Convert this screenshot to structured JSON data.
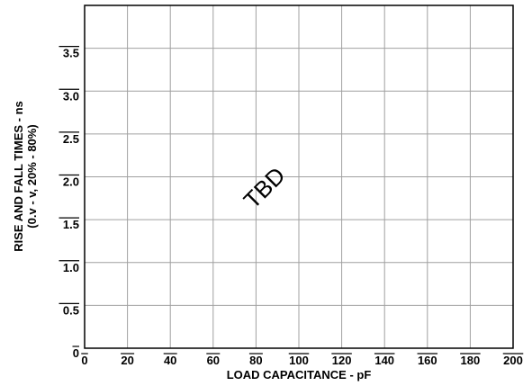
{
  "chart_data": {
    "type": "line",
    "title": "",
    "xlabel": "LOAD CAPACITANCE - pF",
    "ylabel": "RISE AND FALL TIMES - ns",
    "ylabel_sub": "(0.v - v, 20% - 80%)",
    "xlim": [
      0,
      200
    ],
    "ylim": [
      0,
      4.0
    ],
    "x_ticks": [
      0,
      20,
      40,
      60,
      80,
      100,
      120,
      140,
      160,
      180,
      200
    ],
    "x_tick_labels": [
      "0",
      "20",
      "40",
      "60",
      "80",
      "100",
      "120",
      "140",
      "160",
      "180",
      "200"
    ],
    "y_ticks": [
      0,
      0.5,
      1.0,
      1.5,
      2.0,
      2.5,
      3.0,
      3.5
    ],
    "y_tick_labels": [
      "0",
      "0.5",
      "1.0",
      "1.5",
      "2.0",
      "2.5",
      "3.0",
      "3.5"
    ],
    "grid": true,
    "series": [],
    "annotation": "TBD",
    "colors": {
      "grid": "#a0a0a0",
      "frame": "#000000"
    }
  }
}
